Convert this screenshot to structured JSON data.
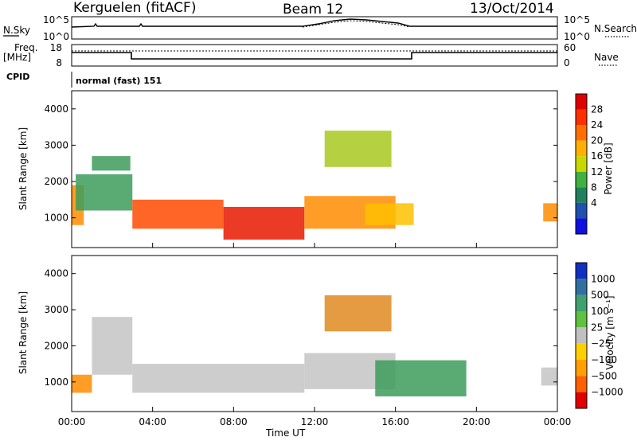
{
  "header": {
    "station": "Kerguelen (fitACF)",
    "beam": "Beam 12",
    "date": "13/Oct/2014"
  },
  "strip_panels": {
    "nsky": {
      "label": "N.Sky",
      "ticks": [
        "10^5",
        "10^0"
      ]
    },
    "nsearch": {
      "label": "N.Search",
      "ticks": [
        "10^5",
        "10^0"
      ]
    },
    "freq": {
      "label_line1": "Freq.",
      "label_line2": "[MHz]",
      "ticks": [
        "18",
        "8"
      ]
    },
    "nave": {
      "label": "Nave",
      "ticks": [
        "60",
        "0"
      ]
    },
    "cpid": {
      "label": "CPID",
      "value": "normal (fast) 151"
    }
  },
  "chart_data": [
    {
      "type": "heatmap",
      "panel": "power",
      "ylabel": "Slant Range [km]",
      "ylim": [
        180,
        4500
      ],
      "yticks": [
        1000,
        2000,
        3000,
        4000
      ],
      "x_ticks": [
        "00:00",
        "04:00",
        "08:00",
        "12:00",
        "16:00",
        "20:00",
        "00:00"
      ],
      "xlim_hours": [
        0,
        24
      ],
      "colorbar": {
        "label": "Power [dB]",
        "ticks": [
          "28",
          "24",
          "20",
          "16",
          "12",
          "8",
          "4"
        ],
        "colors": [
          "#e00000",
          "#ff3000",
          "#ff7000",
          "#ffb000",
          "#c8d800",
          "#40b040",
          "#208060",
          "#2050b0",
          "#1010e0"
        ]
      },
      "regions": [
        {
          "t0": 0.0,
          "t1": 0.6,
          "r0": 800,
          "r1": 1900,
          "level": "orange"
        },
        {
          "t0": 0.2,
          "t1": 3.0,
          "r0": 1200,
          "r1": 2200,
          "level": "green"
        },
        {
          "t0": 1.0,
          "t1": 2.9,
          "r0": 2300,
          "r1": 2700,
          "level": "green"
        },
        {
          "t0": 3.0,
          "t1": 7.5,
          "r0": 700,
          "r1": 1500,
          "level": "red-orange"
        },
        {
          "t0": 7.5,
          "t1": 11.5,
          "r0": 400,
          "r1": 1300,
          "level": "red"
        },
        {
          "t0": 11.5,
          "t1": 16.0,
          "r0": 700,
          "r1": 1600,
          "level": "orange"
        },
        {
          "t0": 12.5,
          "t1": 15.8,
          "r0": 2400,
          "r1": 3400,
          "level": "green-yellow"
        },
        {
          "t0": 14.5,
          "t1": 16.9,
          "r0": 800,
          "r1": 1400,
          "level": "yellow"
        },
        {
          "t0": 23.3,
          "t1": 24.0,
          "r0": 900,
          "r1": 1400,
          "level": "orange"
        }
      ]
    },
    {
      "type": "heatmap",
      "panel": "velocity",
      "ylabel": "Slant Range [km]",
      "xlabel": "Time UT",
      "ylim": [
        180,
        4500
      ],
      "yticks": [
        1000,
        2000,
        3000,
        4000
      ],
      "x_ticks": [
        "00:00",
        "04:00",
        "08:00",
        "12:00",
        "16:00",
        "20:00",
        "00:00"
      ],
      "xlim_hours": [
        0,
        24
      ],
      "colorbar": {
        "label": "Velocity [m s⁻¹]",
        "ticks": [
          "1000",
          "500",
          "100",
          "25",
          "−25",
          "−100",
          "−500",
          "−1000"
        ],
        "colors": [
          "#1030c0",
          "#3070a0",
          "#40a070",
          "#60c040",
          "#c0c0c0",
          "#ffd000",
          "#ffa000",
          "#ff6000",
          "#e00000"
        ]
      },
      "regions": [
        {
          "t0": 0.0,
          "t1": 1.0,
          "r0": 700,
          "r1": 1200,
          "level": "orange"
        },
        {
          "t0": 1.0,
          "t1": 3.0,
          "r0": 1200,
          "r1": 2800,
          "level": "gray"
        },
        {
          "t0": 3.0,
          "t1": 11.5,
          "r0": 700,
          "r1": 1500,
          "level": "gray"
        },
        {
          "t0": 11.5,
          "t1": 16.0,
          "r0": 800,
          "r1": 1800,
          "level": "gray"
        },
        {
          "t0": 12.5,
          "t1": 15.8,
          "r0": 2400,
          "r1": 3400,
          "level": "orange-green"
        },
        {
          "t0": 15.0,
          "t1": 19.5,
          "r0": 600,
          "r1": 1600,
          "level": "green"
        },
        {
          "t0": 23.2,
          "t1": 24.0,
          "r0": 900,
          "r1": 1400,
          "level": "gray"
        }
      ]
    }
  ]
}
